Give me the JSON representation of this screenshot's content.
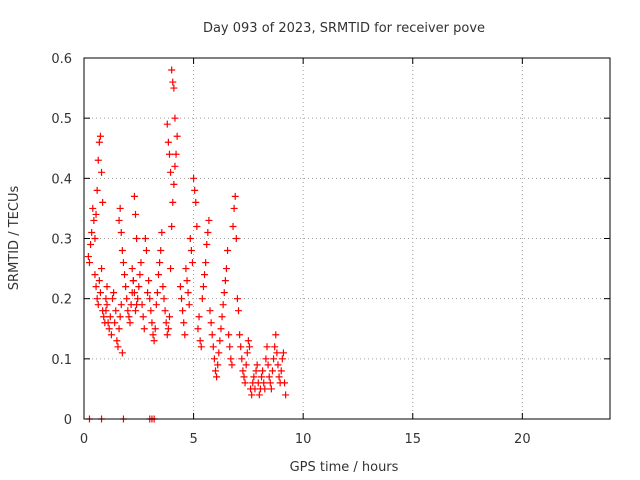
{
  "chart_data": {
    "type": "scatter",
    "title": "Day 093 of 2023, SRMTID for receiver pove",
    "xlabel": "GPS time / hours",
    "ylabel": "SRMTID / TECUs",
    "xlim": [
      0,
      24
    ],
    "ylim": [
      0,
      0.6
    ],
    "xticks": [
      0,
      5,
      10,
      15,
      20
    ],
    "xtick_labels": [
      "0",
      "5",
      "10",
      "15",
      "20"
    ],
    "yticks": [
      0,
      0.1,
      0.2,
      0.3,
      0.4,
      0.5,
      0.6
    ],
    "ytick_labels": [
      "0",
      "0.1",
      "0.2",
      "0.3",
      "0.4",
      "0.5",
      "0.6"
    ],
    "grid": true,
    "marker": "+",
    "marker_color": "#ff0000",
    "series": [
      {
        "name": "SRMTID",
        "x": [
          0.2,
          0.25,
          0.3,
          0.35,
          0.4,
          0.45,
          0.5,
          0.55,
          0.6,
          0.65,
          0.7,
          0.75,
          0.8,
          0.85,
          0.5,
          0.55,
          0.6,
          0.65,
          0.7,
          0.75,
          0.8,
          0.85,
          0.9,
          0.95,
          1.0,
          1.05,
          1.0,
          1.05,
          1.1,
          1.15,
          1.2,
          1.25,
          1.3,
          1.35,
          1.4,
          1.45,
          1.5,
          1.55,
          1.6,
          1.65,
          1.7,
          1.75,
          1.6,
          1.65,
          1.7,
          1.75,
          1.8,
          1.85,
          1.9,
          1.95,
          2.0,
          2.05,
          2.1,
          2.15,
          2.2,
          2.25,
          2.3,
          2.35,
          2.4,
          2.2,
          2.25,
          2.3,
          2.35,
          2.4,
          2.45,
          2.5,
          2.55,
          2.6,
          2.65,
          2.7,
          2.75,
          2.8,
          2.85,
          2.9,
          2.95,
          3.0,
          3.05,
          3.1,
          3.15,
          3.2,
          3.25,
          3.3,
          3.35,
          3.4,
          3.45,
          3.5,
          3.55,
          3.6,
          3.65,
          3.7,
          3.75,
          3.8,
          3.85,
          3.9,
          3.95,
          4.0,
          4.05,
          4.1,
          4.15,
          4.2,
          4.25,
          3.8,
          3.85,
          3.9,
          3.95,
          4.0,
          4.05,
          4.1,
          4.15,
          4.4,
          4.45,
          4.5,
          4.55,
          4.6,
          4.65,
          4.7,
          4.75,
          4.8,
          4.85,
          4.9,
          4.95,
          5.0,
          5.05,
          5.1,
          5.15,
          5.2,
          5.25,
          5.3,
          5.35,
          5.4,
          5.45,
          5.5,
          5.55,
          5.6,
          5.65,
          5.7,
          5.75,
          5.8,
          5.85,
          5.9,
          5.95,
          6.0,
          6.05,
          6.1,
          6.15,
          6.2,
          6.25,
          6.3,
          6.35,
          6.4,
          6.45,
          6.5,
          6.55,
          6.6,
          6.65,
          6.7,
          6.75,
          6.8,
          6.85,
          6.9,
          6.95,
          7.0,
          7.05,
          7.1,
          7.15,
          7.2,
          7.25,
          7.3,
          7.35,
          7.4,
          7.45,
          7.5,
          7.55,
          7.6,
          7.65,
          7.7,
          7.75,
          7.8,
          7.85,
          7.9,
          7.95,
          8.0,
          8.05,
          8.1,
          8.15,
          8.2,
          8.25,
          8.3,
          8.35,
          8.4,
          8.45,
          8.5,
          8.55,
          8.6,
          8.65,
          8.7,
          8.75,
          8.8,
          8.85,
          8.9,
          8.95,
          9.0,
          9.05,
          9.1,
          9.15,
          9.2,
          0.25,
          0.8,
          1.8,
          3.0,
          3.1,
          3.2
        ],
        "y": [
          0.27,
          0.26,
          0.29,
          0.31,
          0.35,
          0.33,
          0.3,
          0.34,
          0.38,
          0.43,
          0.46,
          0.47,
          0.41,
          0.36,
          0.24,
          0.22,
          0.2,
          0.19,
          0.23,
          0.21,
          0.25,
          0.18,
          0.17,
          0.16,
          0.2,
          0.22,
          0.18,
          0.19,
          0.16,
          0.15,
          0.17,
          0.14,
          0.2,
          0.21,
          0.16,
          0.18,
          0.13,
          0.12,
          0.15,
          0.17,
          0.19,
          0.11,
          0.33,
          0.35,
          0.31,
          0.28,
          0.26,
          0.24,
          0.22,
          0.2,
          0.18,
          0.17,
          0.16,
          0.19,
          0.21,
          0.23,
          0.37,
          0.34,
          0.3,
          0.25,
          0.23,
          0.21,
          0.18,
          0.19,
          0.2,
          0.22,
          0.24,
          0.26,
          0.19,
          0.17,
          0.15,
          0.3,
          0.28,
          0.21,
          0.23,
          0.2,
          0.18,
          0.16,
          0.14,
          0.13,
          0.15,
          0.19,
          0.21,
          0.24,
          0.26,
          0.28,
          0.31,
          0.22,
          0.2,
          0.18,
          0.16,
          0.14,
          0.15,
          0.17,
          0.25,
          0.32,
          0.36,
          0.39,
          0.42,
          0.44,
          0.47,
          0.49,
          0.46,
          0.44,
          0.41,
          0.58,
          0.56,
          0.55,
          0.5,
          0.22,
          0.2,
          0.18,
          0.16,
          0.14,
          0.25,
          0.23,
          0.21,
          0.19,
          0.3,
          0.28,
          0.26,
          0.4,
          0.38,
          0.36,
          0.32,
          0.15,
          0.17,
          0.13,
          0.12,
          0.2,
          0.22,
          0.24,
          0.26,
          0.29,
          0.31,
          0.33,
          0.18,
          0.16,
          0.14,
          0.12,
          0.1,
          0.08,
          0.07,
          0.09,
          0.11,
          0.13,
          0.15,
          0.17,
          0.19,
          0.21,
          0.23,
          0.25,
          0.28,
          0.14,
          0.12,
          0.1,
          0.09,
          0.32,
          0.35,
          0.37,
          0.3,
          0.2,
          0.18,
          0.14,
          0.12,
          0.1,
          0.08,
          0.07,
          0.06,
          0.09,
          0.11,
          0.13,
          0.12,
          0.05,
          0.04,
          0.06,
          0.07,
          0.05,
          0.08,
          0.09,
          0.06,
          0.04,
          0.05,
          0.07,
          0.08,
          0.06,
          0.05,
          0.1,
          0.12,
          0.09,
          0.07,
          0.06,
          0.05,
          0.08,
          0.1,
          0.12,
          0.14,
          0.11,
          0.09,
          0.07,
          0.06,
          0.08,
          0.1,
          0.11,
          0.06,
          0.04,
          0,
          0,
          0,
          0,
          0,
          0
        ]
      }
    ]
  }
}
